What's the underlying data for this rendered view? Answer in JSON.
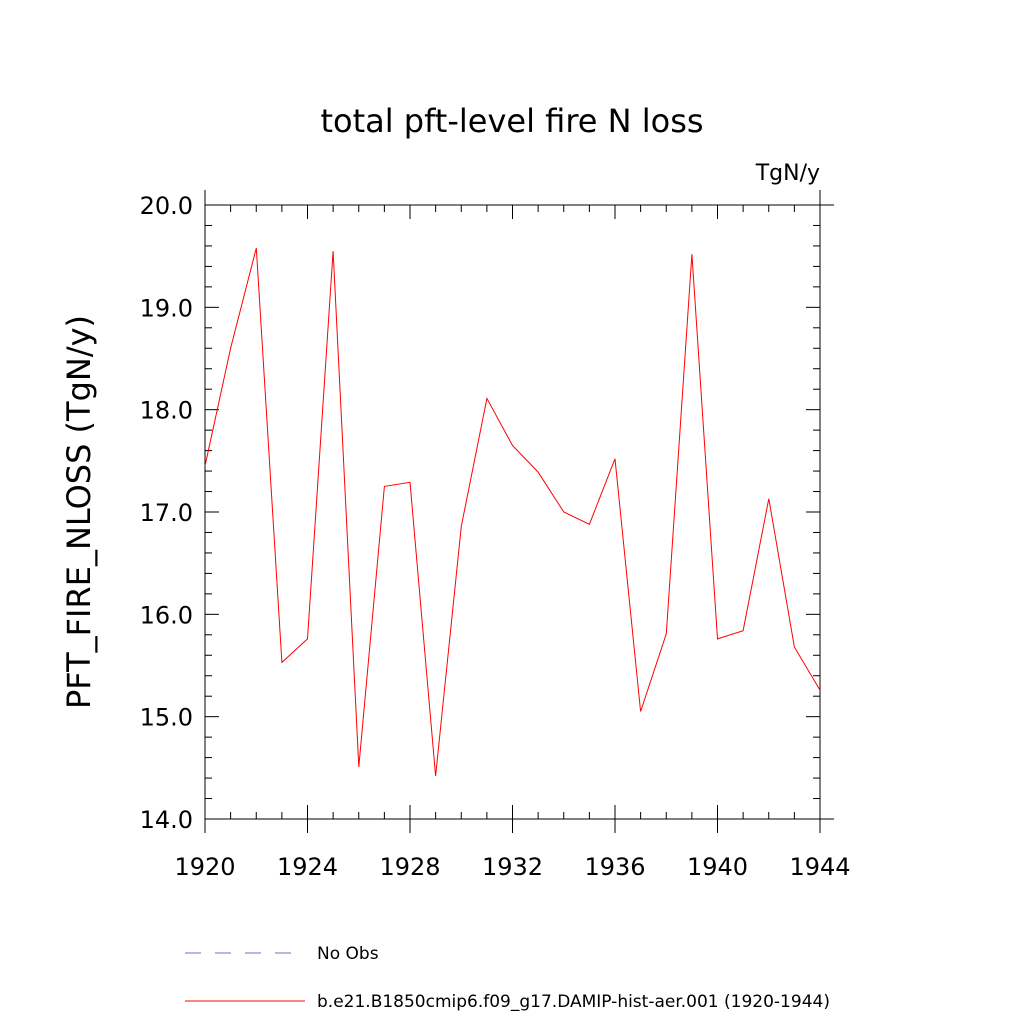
{
  "chart_data": {
    "type": "line",
    "title": "total pft-level fire N loss",
    "units_label": "TgN/y",
    "ylabel": "PFT_FIRE_NLOSS  (TgN/y)",
    "xlabel": "",
    "xlim": [
      1920,
      1944
    ],
    "ylim": [
      14.0,
      20.0
    ],
    "x_ticks": [
      1920,
      1924,
      1928,
      1932,
      1936,
      1940,
      1944
    ],
    "x_tick_labels": [
      "1920",
      "1924",
      "1928",
      "1932",
      "1936",
      "1940",
      "1944"
    ],
    "y_ticks": [
      14.0,
      15.0,
      16.0,
      17.0,
      18.0,
      19.0,
      20.0
    ],
    "y_tick_labels": [
      "14.0",
      "15.0",
      "16.0",
      "17.0",
      "18.0",
      "19.0",
      "20.0"
    ],
    "grid": false,
    "series": [
      {
        "name": "b.e21.B1850cmip6.f09_g17.DAMIP-hist-aer.001 (1920-1944)",
        "color": "#ff0000",
        "x": [
          1920,
          1921,
          1922,
          1923,
          1924,
          1925,
          1926,
          1927,
          1928,
          1929,
          1930,
          1931,
          1932,
          1933,
          1934,
          1935,
          1936,
          1937,
          1938,
          1939,
          1940,
          1941,
          1942,
          1943,
          1944
        ],
        "values": [
          17.45,
          18.6,
          19.58,
          15.53,
          15.76,
          19.55,
          14.51,
          17.25,
          17.29,
          14.42,
          16.86,
          18.11,
          17.65,
          17.39,
          17.0,
          16.88,
          17.52,
          15.05,
          15.81,
          19.52,
          15.76,
          15.84,
          17.13,
          15.68,
          15.26
        ]
      }
    ],
    "legend": {
      "placement": "bottom",
      "entries": [
        {
          "label": "No Obs",
          "color": "#7b68c8",
          "style": "dashed"
        },
        {
          "label": "b.e21.B1850cmip6.f09_g17.DAMIP-hist-aer.001 (1920-1944)",
          "color": "#ff0000",
          "style": "solid"
        }
      ]
    }
  }
}
